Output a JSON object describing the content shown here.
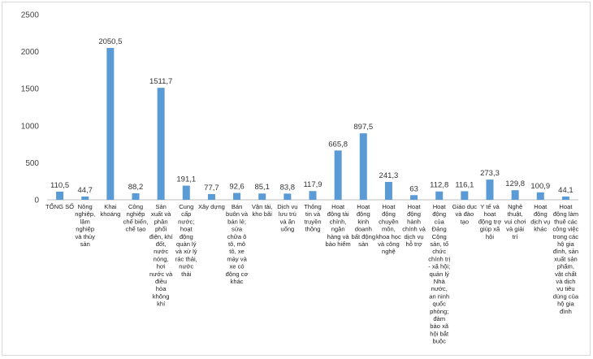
{
  "chart_data": {
    "type": "bar",
    "categories": [
      "TỔNG SỐ",
      "Nông nghiệp, lâm nghiệp và thủy sản",
      "Khai khoáng",
      "Công nghiệp chế biến, chế tạo",
      "Sản xuất và phân phối điện, khí đốt, nước nóng, hơi nước và điều hòa không khí",
      "Cung cấp nước; hoạt động quản lý và xử lý rác thải, nước thải",
      "Xây dựng",
      "Bán buôn và bán lẻ; sửa chữa ô tô, mô tô, xe máy và xe có động cơ khác",
      "Vận tải, kho bãi",
      "Dịch vụ lưu trú và ăn uống",
      "Thông tin và truyền thông",
      "Hoạt động tài chính, ngân hàng và bảo hiểm",
      "Hoạt động kinh doanh bất động sản",
      "Hoạt động chuyên môn, khoa học và công nghệ",
      "Hoạt động hành chính và dịch vụ hỗ trợ",
      "Hoạt động của Đảng Cộng sản, tổ chức chính trị - xã hội; quản lý Nhà nước, an ninh quốc phòng; đảm bảo xã hội bắt buộc",
      "Giáo dục và đào tạo",
      "Y tế và hoạt động trợ giúp xã hội",
      "Nghệ thuật, vui chơi và giải trí",
      "Hoạt động dịch vụ khác",
      "Hoạt động làm thuê các công việc trong các hộ gia đình, sản xuất sản phẩm, vật chất và dịch vụ tiêu dùng của hộ gia đình"
    ],
    "category_lines": [
      [
        "TỔNG SỐ"
      ],
      [
        "Nông",
        "nghiệp,",
        "lâm",
        "nghiệp",
        "và thủy",
        "sản"
      ],
      [
        "Khai",
        "khoáng"
      ],
      [
        "Công",
        "nghiệp",
        "chế biến,",
        "chế tạo"
      ],
      [
        "Sản",
        "xuất và",
        "phân",
        "phối",
        "điện, khí",
        "đốt,",
        "nước",
        "nóng,",
        "hơi",
        "nước và",
        "điều",
        "hòa",
        "không",
        "khí"
      ],
      [
        "Cung",
        "cấp",
        "nước;",
        "hoạt",
        "động",
        "quản lý",
        "và xử lý",
        "rác thải,",
        "nước",
        "thải"
      ],
      [
        "Xây dựng"
      ],
      [
        "Bán",
        "buôn và",
        "bán lẻ;",
        "sửa",
        "chữa ô",
        "tô, mô",
        "tô, xe",
        "máy và",
        "xe có",
        "động cơ",
        "khác"
      ],
      [
        "Vận tải,",
        "kho bãi"
      ],
      [
        "Dịch vụ",
        "lưu trú",
        "và ăn",
        "uống"
      ],
      [
        "Thông",
        "tin và",
        "truyền",
        "thông"
      ],
      [
        "Hoạt",
        "động tài",
        "chính,",
        "ngân",
        "hàng và",
        "bảo hiểm"
      ],
      [
        "Hoạt",
        "động",
        "kinh",
        "doanh",
        "bất động",
        "sản"
      ],
      [
        "Hoạt",
        "động",
        "chuyên",
        "môn,",
        "khoa học",
        "và công",
        "nghệ"
      ],
      [
        "Hoạt",
        "động",
        "hành",
        "chính và",
        "dịch vụ",
        "hỗ trợ"
      ],
      [
        "Hoạt",
        "động",
        "của",
        "Đảng",
        "Cộng",
        "sản, tổ",
        "chức",
        "chính trị",
        "- xã hội;",
        "quản lý",
        "Nhà",
        "nước,",
        "an ninh",
        "quốc",
        "phòng;",
        "đảm",
        "bảo xã",
        "hội bắt",
        "buộc"
      ],
      [
        "Giáo dục",
        "và đào",
        "tạo"
      ],
      [
        "Y tế và",
        "hoạt",
        "động trợ",
        "giúp xã",
        "hội"
      ],
      [
        "Nghệ",
        "thuật,",
        "vui chơi",
        "và giải",
        "trí"
      ],
      [
        "Hoạt",
        "động",
        "dịch vụ",
        "khác"
      ],
      [
        "Hoạt",
        "động làm",
        "thuê các",
        "công việc",
        "trong các",
        "hộ gia",
        "đình, sản",
        "xuất sản",
        "phẩm,",
        "vật chất",
        "và dịch",
        "vụ tiêu",
        "dùng của",
        "hộ gia",
        "đình"
      ]
    ],
    "values": [
      110.5,
      44.7,
      2050.5,
      88.2,
      1511.7,
      191.1,
      77.7,
      92.6,
      85.1,
      83.8,
      117.9,
      665.8,
      897.5,
      241.3,
      63,
      112.8,
      116.1,
      273.3,
      129.8,
      100.9,
      44.1
    ],
    "data_labels": [
      "110,5",
      "44,7",
      "2050,5",
      "88,2",
      "1511,7",
      "191,1",
      "77,7",
      "92,6",
      "85,1",
      "83,8",
      "117,9",
      "665,8",
      "897,5",
      "241,3",
      "63",
      "112,8",
      "116,1",
      "273,3",
      "129,8",
      "100,9",
      "44,1"
    ],
    "ylim": [
      0,
      2500
    ],
    "yticks": [
      0,
      500,
      1000,
      1500,
      2000,
      2500
    ],
    "title": "",
    "xlabel": "",
    "ylabel": "",
    "grid": false,
    "legend": "none",
    "bar_color": "#5b9bd5",
    "axis_color": "#bfbfbf"
  }
}
